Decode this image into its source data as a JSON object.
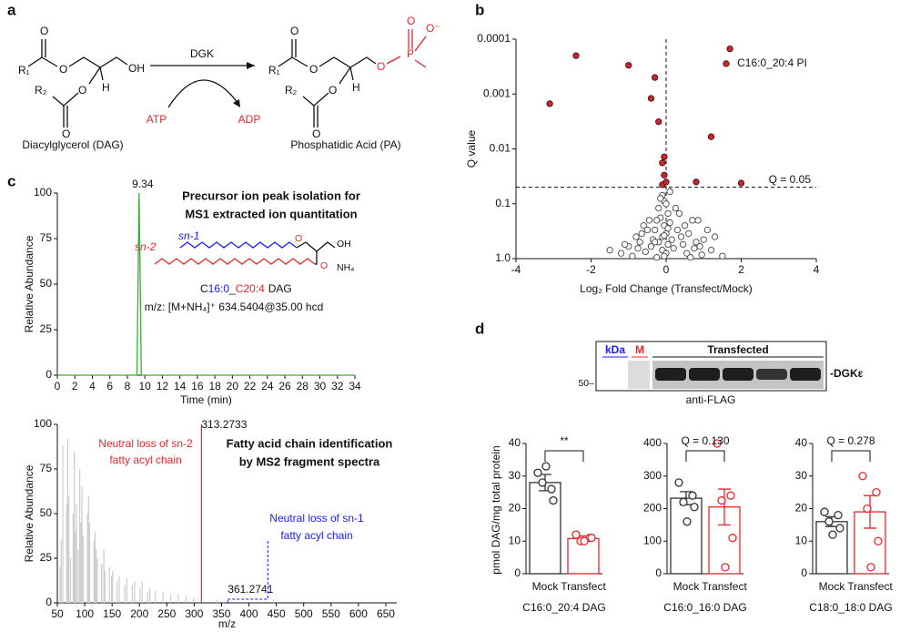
{
  "panel_labels": [
    "a",
    "b",
    "c",
    "d"
  ],
  "scheme": {
    "enzyme": "DGK",
    "cofactor_in": "ATP",
    "cofactor_out": "ADP",
    "reactant": "Diacylglycerol (DAG)",
    "product": "Phosphatidic Acid (PA)",
    "dag_atoms": [
      "R₁",
      "O",
      "O",
      "OH",
      "R₂",
      "O",
      "H",
      "O"
    ],
    "pa_atoms": [
      "R₁",
      "O",
      "O",
      "P",
      "O",
      "O⁻",
      "O",
      "R₂",
      "O",
      "H",
      "O"
    ]
  },
  "blot": {
    "kda": "kDa",
    "marker": "M",
    "lanes_label": "Transfected",
    "protein": "-DGKε",
    "size_marker": "50–",
    "antibody": "anti-FLAG"
  },
  "chart_data": [
    {
      "type": "scatter",
      "x_label": "Log₂ Fold Change (Transfect/Mock)",
      "y_label": "Q value",
      "y_scale": "log",
      "xlim": [
        -4,
        4
      ],
      "xticks": [
        -4,
        -2,
        0,
        2,
        4
      ],
      "ylim": [
        1,
        0.0001
      ],
      "yticks": [
        0.0001,
        0.001,
        0.01,
        0.1,
        {
          "value": 1,
          "label": "1.0"
        }
      ],
      "threshold": {
        "value": 0.05,
        "label": "Q = 0.05"
      },
      "highlight_label": "C16:0_20:4 PI",
      "series": [
        {
          "color": "#444444",
          "filled": false,
          "x": [
            -0.1,
            -0.05,
            0.0,
            -0.2,
            0.05,
            -0.15,
            -0.25,
            0.1,
            -0.05,
            -0.3,
            0.0,
            -0.1,
            0.15,
            -0.2,
            0.05,
            -0.4,
            0.2,
            -0.1,
            0.0,
            -0.05,
            0.3,
            0.5,
            0.6,
            0.8,
            0.9,
            1.0,
            1.2,
            1.5,
            0.7,
            0.4,
            0.55,
            1.1,
            0.35,
            0.45,
            0.75,
            0.65,
            -0.6,
            -0.8,
            -1.0,
            -1.2,
            -1.5,
            -0.7,
            -0.5,
            -0.9,
            -0.45,
            -0.55,
            -0.35,
            -1.1,
            -0.65,
            0.25,
            -0.15,
            0.1,
            -0.25,
            0.95,
            1.3,
            -0.75,
            0.85,
            -0.3,
            0.05,
            -0.05
          ],
          "values": [
            0.07,
            0.09,
            0.1,
            0.12,
            0.15,
            0.18,
            0.2,
            0.22,
            0.25,
            0.3,
            0.35,
            0.4,
            0.45,
            0.5,
            0.55,
            0.6,
            0.65,
            0.7,
            0.8,
            0.9,
            0.3,
            0.25,
            0.35,
            0.5,
            0.6,
            0.45,
            0.7,
            0.9,
            0.2,
            0.4,
            0.8,
            0.3,
            0.15,
            0.55,
            0.65,
            0.95,
            0.25,
            0.4,
            0.6,
            0.8,
            0.7,
            0.5,
            0.3,
            0.9,
            0.2,
            0.75,
            0.45,
            0.55,
            0.35,
            0.12,
            0.08,
            0.06,
            0.95,
            0.85,
            0.4,
            0.65,
            0.2,
            0.5,
            0.28,
            0.38
          ]
        },
        {
          "color": "#c8282d",
          "filled": true,
          "x": [
            1.7,
            1.6,
            -2.4,
            -1.0,
            -0.3,
            -3.1,
            -0.4,
            1.2,
            -0.2,
            -0.05,
            -0.1,
            -0.05,
            0.8,
            2.0,
            -0.1,
            0.0
          ],
          "values": [
            0.00015,
            0.00028,
            0.0002,
            0.0003,
            0.0005,
            0.0015,
            0.0012,
            0.006,
            0.0032,
            0.014,
            0.018,
            0.03,
            0.04,
            0.042,
            0.045,
            0.04
          ]
        }
      ]
    },
    {
      "type": "line",
      "x_label": "Time (min)",
      "y_label": "Relative Abundance",
      "xlim": [
        0,
        34
      ],
      "xticks": [
        0,
        2,
        4,
        6,
        8,
        10,
        12,
        14,
        16,
        18,
        20,
        22,
        24,
        26,
        28,
        30,
        32,
        34
      ],
      "ylim": [
        0,
        100
      ],
      "yticks": [
        0,
        25,
        50,
        75,
        100
      ],
      "series": [
        {
          "color": "#3aaa35",
          "x": [
            0,
            9.1,
            9.34,
            9.6,
            34
          ],
          "values": [
            0,
            0,
            100,
            0,
            0
          ]
        }
      ],
      "notes": [
        "Precursor ion peak isolation for",
        "MS1 extracted ion quantitation"
      ],
      "chains": [
        "sn-1",
        "sn-2"
      ],
      "structure_atoms": [
        "O",
        "O",
        "OH",
        "NH₄"
      ],
      "formula_parts": [
        "C",
        "16:0",
        "_",
        "C20:4",
        "DAG"
      ],
      "mz_line": "m/z: [M+NH₄]⁺ 634.5404@35.00 hcd"
    },
    {
      "type": "stem",
      "x_label": "m/z",
      "y_label": "Relative Abundance",
      "xlim": [
        50,
        670
      ],
      "xticks": [
        50,
        100,
        150,
        200,
        250,
        300,
        350,
        400,
        450,
        500,
        550,
        600,
        650
      ],
      "ylim": [
        0,
        100
      ],
      "yticks": [
        0,
        25,
        50,
        75,
        100
      ],
      "series": [
        {
          "color": "#cccccc",
          "x": [
            55,
            57,
            60,
            67,
            69,
            71,
            74,
            79,
            81,
            83,
            85,
            88,
            91,
            93,
            95,
            97,
            105,
            107,
            109,
            117,
            119,
            121,
            123,
            131,
            135,
            137,
            145,
            149,
            151,
            159,
            163,
            173,
            177,
            187,
            191,
            201,
            205,
            215,
            219,
            229,
            243,
            257,
            271,
            285,
            299,
            341,
            445
          ],
          "values": [
            20,
            35,
            88,
            55,
            92,
            60,
            25,
            50,
            85,
            40,
            55,
            30,
            75,
            45,
            65,
            38,
            50,
            60,
            45,
            35,
            40,
            30,
            25,
            22,
            30,
            18,
            20,
            15,
            18,
            12,
            15,
            10,
            14,
            10,
            12,
            8,
            12,
            6,
            8,
            7,
            6,
            5,
            5,
            4,
            3,
            2,
            2
          ]
        },
        {
          "color": "#e8262a",
          "x": [
            313.2733
          ],
          "values": [
            100
          ],
          "label": true
        },
        {
          "color": "#1a1aff",
          "x": [
            361.2741
          ],
          "values": [
            2
          ],
          "label": true,
          "dashed": true
        }
      ],
      "sn2_note": [
        "Neutral loss of sn-2",
        "fatty acyl chain"
      ],
      "notes": [
        "Fatty acid chain identification",
        "by MS2 fragment spectra"
      ],
      "sn1_note": [
        "Neutral loss of sn-1",
        "fatty acyl chain"
      ]
    },
    {
      "type": "bar",
      "title": "C16:0_20:4 DAG",
      "y_label": "pmol DAG/mg total protein",
      "categories": [
        "Mock",
        "Transfect"
      ],
      "colors": [
        "#333333",
        "#e8262a"
      ],
      "ylim": [
        0,
        40
      ],
      "yticks": [
        0,
        10,
        20,
        30,
        40
      ],
      "values": [
        28,
        10.8
      ],
      "errors": [
        2.5,
        0.8
      ],
      "points": [
        [
          31,
          26,
          28,
          22.5,
          33
        ],
        [
          12,
          11,
          10,
          11,
          10
        ]
      ],
      "comparison_label": "**"
    },
    {
      "type": "bar",
      "title": "C16:0_16:0 DAG",
      "categories": [
        "Mock",
        "Transfect"
      ],
      "colors": [
        "#333333",
        "#e8262a"
      ],
      "ylim": [
        0,
        400
      ],
      "yticks": [
        0,
        100,
        200,
        300,
        400
      ],
      "values": [
        232,
        205
      ],
      "errors": [
        20,
        55
      ],
      "points": [
        [
          280,
          240,
          220,
          205,
          160
        ],
        [
          400,
          240,
          225,
          110,
          20
        ]
      ],
      "comparison_label": "Q = 0.130"
    },
    {
      "type": "bar",
      "title": "C18:0_18:0 DAG",
      "categories": [
        "Mock",
        "Transfect"
      ],
      "colors": [
        "#333333",
        "#e8262a"
      ],
      "ylim": [
        0,
        40
      ],
      "yticks": [
        0,
        10,
        20,
        30,
        40
      ],
      "values": [
        16,
        19
      ],
      "errors": [
        1.5,
        5
      ],
      "points": [
        [
          19,
          18,
          16,
          14,
          12
        ],
        [
          30,
          25,
          20,
          10,
          2
        ]
      ],
      "comparison_label": "Q = 0.278"
    }
  ]
}
